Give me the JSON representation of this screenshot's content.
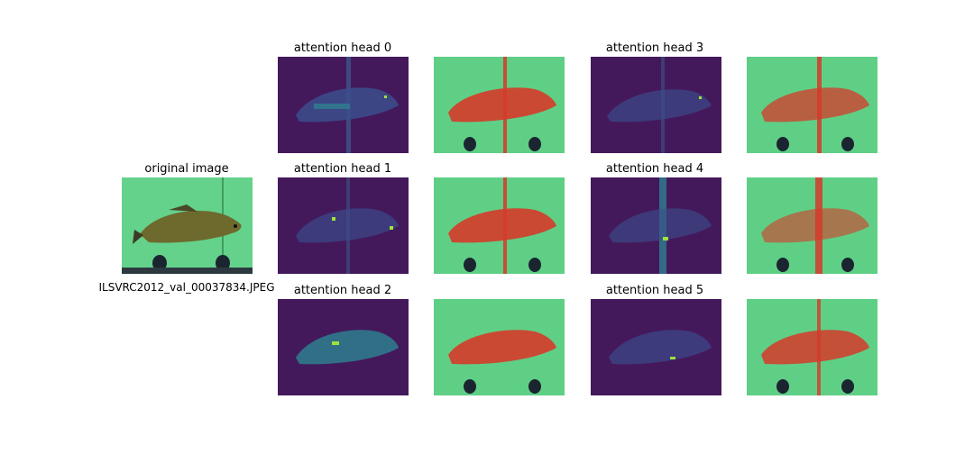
{
  "original": {
    "title": "original image",
    "filename": "ILSVRC2012_val_00037834.JPEG"
  },
  "heads": [
    {
      "title": "attention head 0"
    },
    {
      "title": "attention head 1"
    },
    {
      "title": "attention head 2"
    },
    {
      "title": "attention head 3"
    },
    {
      "title": "attention head 4"
    },
    {
      "title": "attention head 5"
    }
  ],
  "colors": {
    "background_green": "#5fcf86",
    "fish_olive": "#6e6a2e",
    "overlay_red": "#d63a2a",
    "attention_low": "#44195c",
    "attention_mid": "#2e7f8e",
    "attention_high": "#9fe23a"
  }
}
